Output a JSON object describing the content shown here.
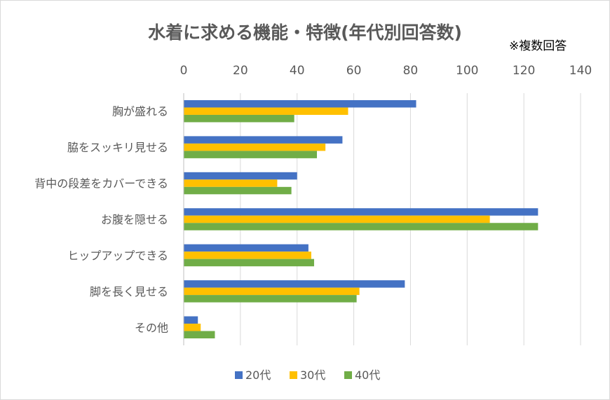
{
  "chart_data": {
    "type": "bar",
    "orientation": "horizontal",
    "title": "水着に求める機能・特徴(年代別回答数)",
    "note": "※複数回答",
    "categories": [
      "胸が盛れる",
      "脇をスッキリ見せる",
      "背中の段差をカバーできる",
      "お腹を隠せる",
      "ヒップアップできる",
      "脚を長く見せる",
      "その他"
    ],
    "series": [
      {
        "name": "20代",
        "color": "#4472c4",
        "values": [
          82,
          56,
          40,
          125,
          44,
          78,
          5
        ]
      },
      {
        "name": "30代",
        "color": "#ffc000",
        "values": [
          58,
          50,
          33,
          108,
          45,
          62,
          6
        ]
      },
      {
        "name": "40代",
        "color": "#70ad47",
        "values": [
          39,
          47,
          38,
          125,
          46,
          61,
          11
        ]
      }
    ],
    "xlim": [
      0,
      140
    ],
    "xticks": [
      0,
      20,
      40,
      60,
      80,
      100,
      120,
      140
    ],
    "axis_position": "top",
    "grid": true,
    "legend_position": "bottom"
  }
}
